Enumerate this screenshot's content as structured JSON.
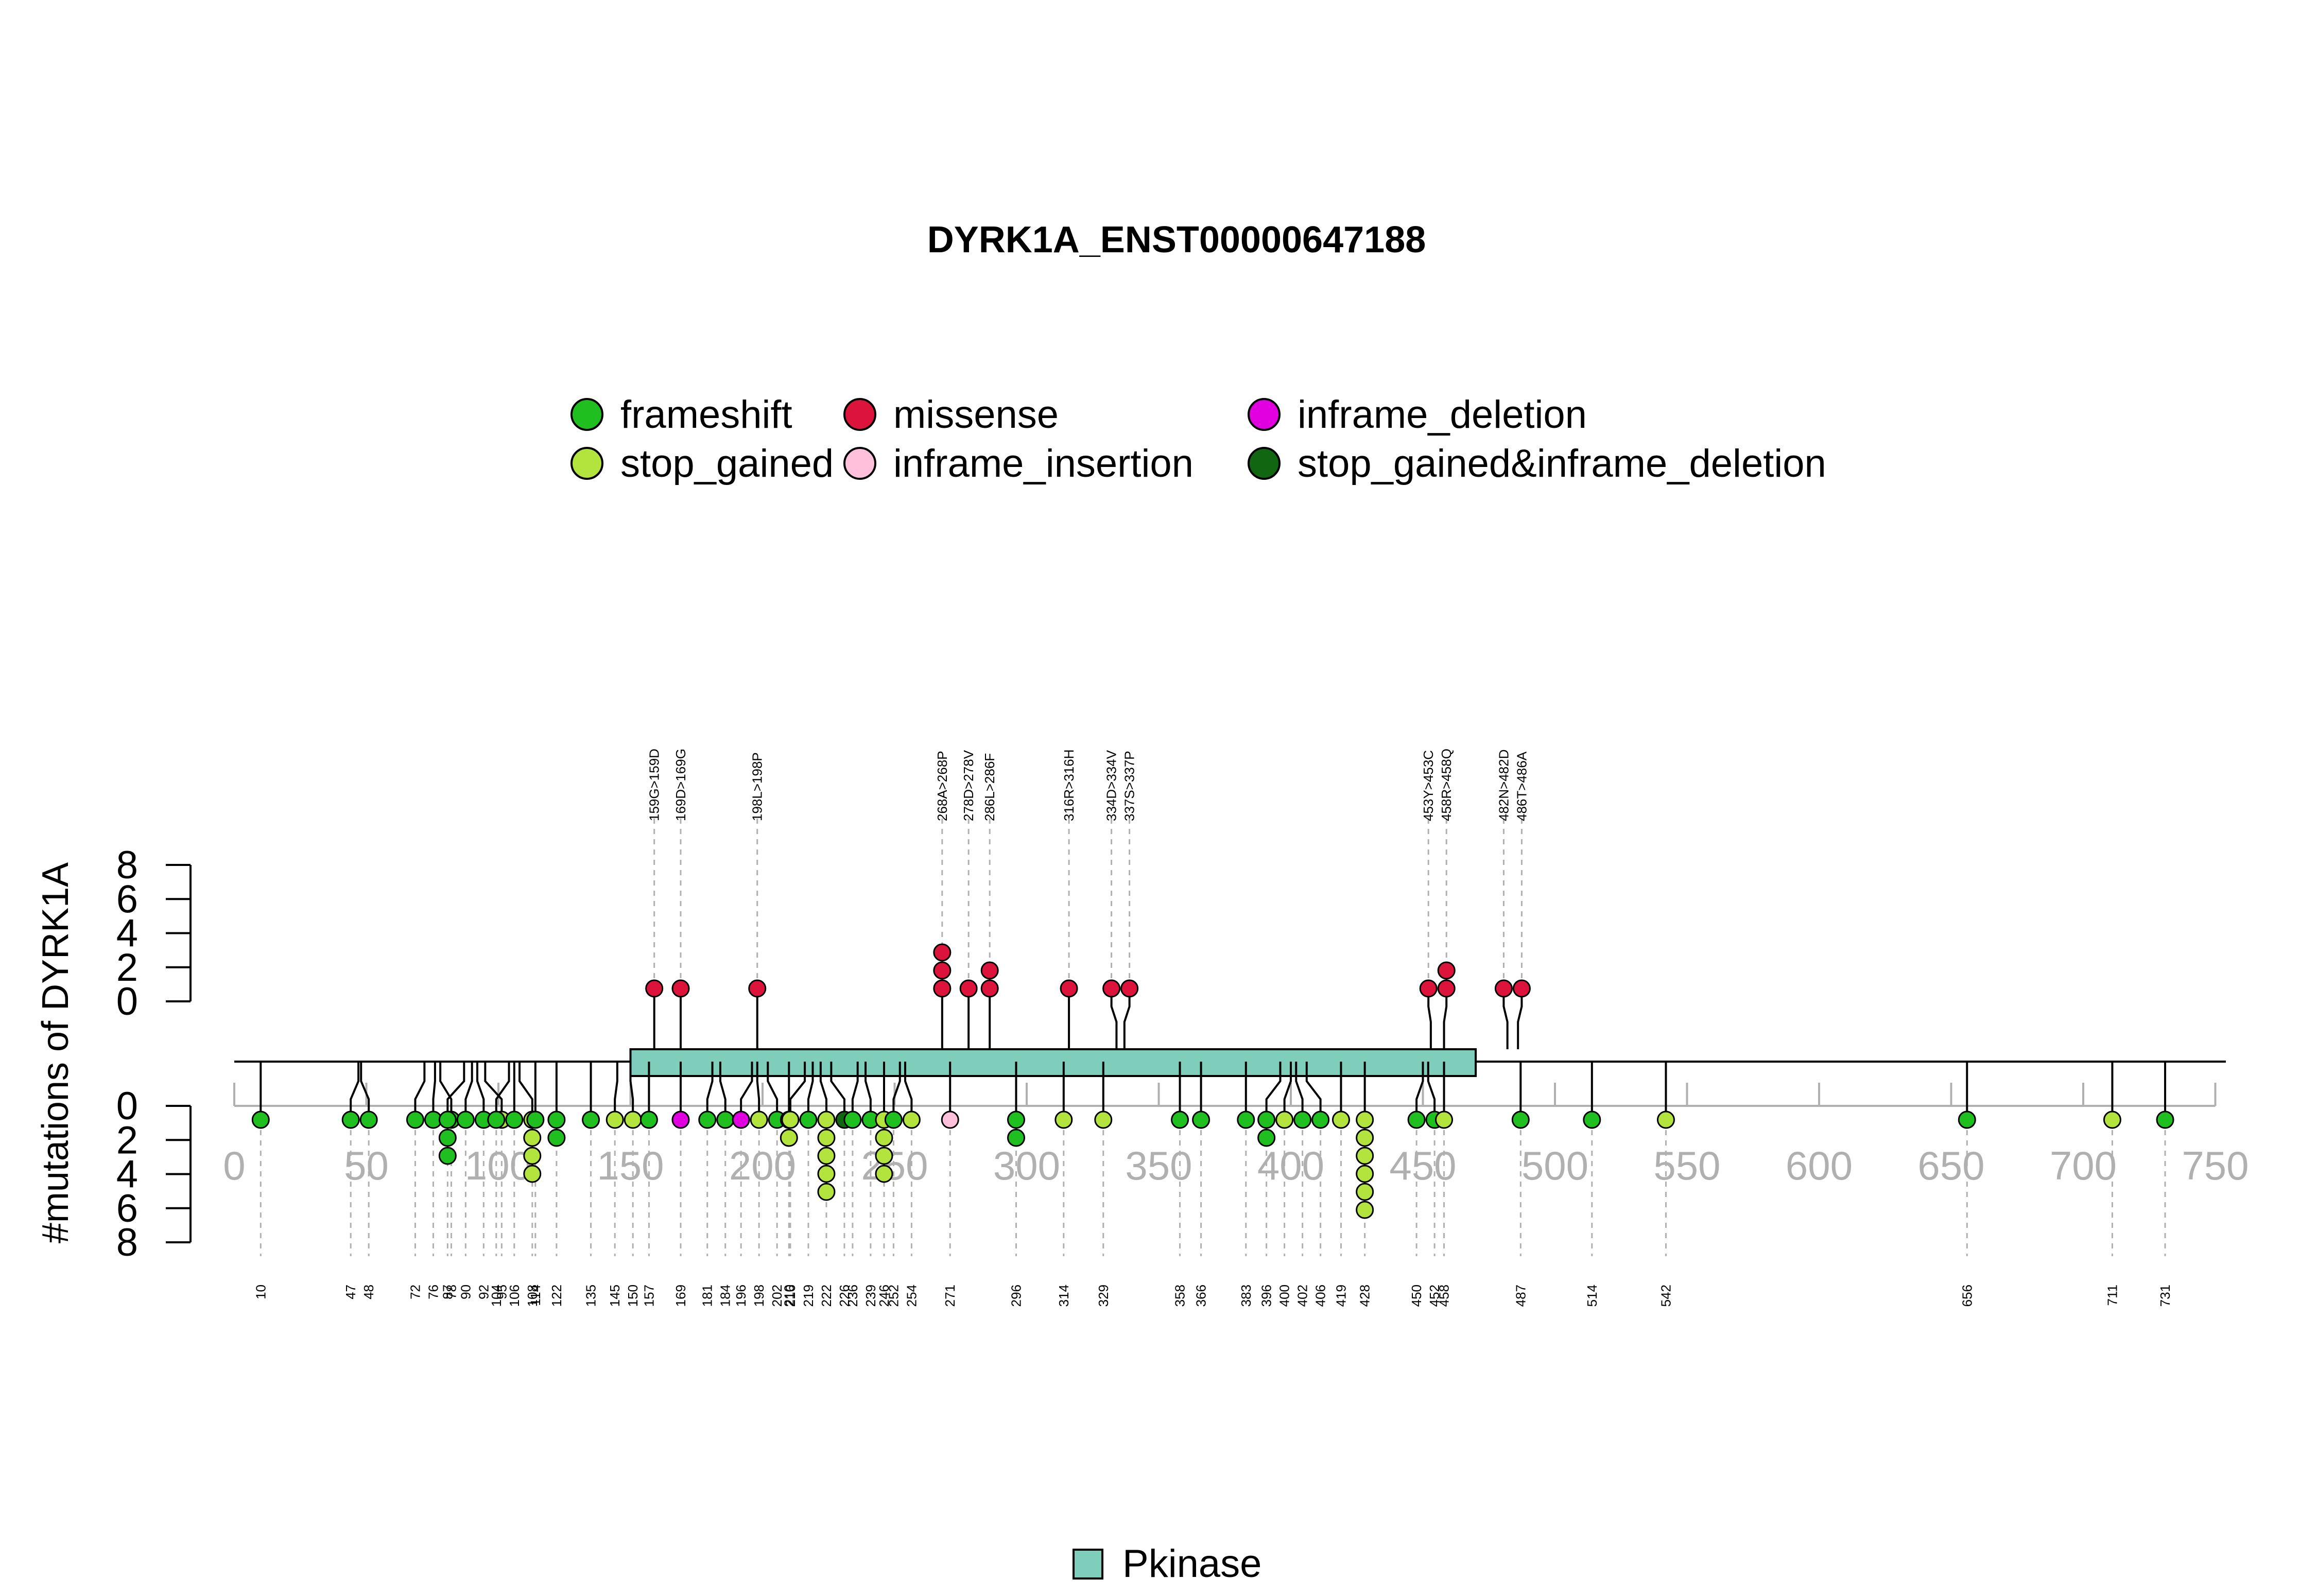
{
  "chart_data": {
    "type": "lollipop",
    "title": "DYRK1A_ENST00000647188",
    "ylabel": "#mutations of DYRK1A",
    "xlim": [
      0,
      750
    ],
    "x_ticks": [
      0,
      50,
      100,
      150,
      200,
      250,
      300,
      350,
      400,
      450,
      500,
      550,
      600,
      650,
      700,
      750
    ],
    "y_ticks": [
      0,
      2,
      4,
      6,
      8
    ],
    "ylim": [
      0,
      8
    ],
    "protein_length": 754,
    "legend": [
      {
        "name": "frameshift",
        "color": "#1fbf1f"
      },
      {
        "name": "missense",
        "color": "#dc143c"
      },
      {
        "name": "inframe_deletion",
        "color": "#e000e0"
      },
      {
        "name": "stop_gained",
        "color": "#b3e33d"
      },
      {
        "name": "inframe_insertion",
        "color": "#ffc0dc"
      },
      {
        "name": "stop_gained&inframe_deletion",
        "color": "#116611"
      }
    ],
    "domains": [
      {
        "name": "Pkinase",
        "start": 150,
        "end": 470,
        "color": "#7fcdbb"
      }
    ],
    "upper_mutations": [
      {
        "pos": 159,
        "label": "159G>159D",
        "count": 1,
        "type": "missense"
      },
      {
        "pos": 169,
        "label": "169D>169G",
        "count": 1,
        "type": "missense"
      },
      {
        "pos": 198,
        "label": "198L>198P",
        "count": 1,
        "type": "missense"
      },
      {
        "pos": 268,
        "label": "268A>268P",
        "count": 3,
        "type": "missense"
      },
      {
        "pos": 278,
        "label": "278D>278V",
        "count": 1,
        "type": "missense"
      },
      {
        "pos": 286,
        "label": "286L>286F",
        "count": 2,
        "type": "missense"
      },
      {
        "pos": 316,
        "label": "316R>316H",
        "count": 1,
        "type": "missense"
      },
      {
        "pos": 334,
        "label": "334D>334V",
        "count": 1,
        "type": "missense"
      },
      {
        "pos": 337,
        "label": "337S>337P",
        "count": 1,
        "type": "missense"
      },
      {
        "pos": 453,
        "label": "453Y>453C",
        "count": 1,
        "type": "missense"
      },
      {
        "pos": 458,
        "label": "458R>458Q",
        "count": 2,
        "type": "missense"
      },
      {
        "pos": 482,
        "label": "482N>482D",
        "count": 1,
        "type": "missense"
      },
      {
        "pos": 486,
        "label": "486T>486A",
        "count": 1,
        "type": "missense"
      }
    ],
    "lower_mutations": [
      {
        "pos": 10,
        "label": "10",
        "count": 1,
        "type": "frameshift"
      },
      {
        "pos": 47,
        "label": "47",
        "count": 1,
        "type": "frameshift"
      },
      {
        "pos": 48,
        "label": "48",
        "count": 1,
        "type": "frameshift"
      },
      {
        "pos": 72,
        "label": "72",
        "count": 1,
        "type": "frameshift"
      },
      {
        "pos": 76,
        "label": "76",
        "count": 1,
        "type": "frameshift"
      },
      {
        "pos": 78,
        "label": "78",
        "count": 1,
        "type": "frameshift"
      },
      {
        "pos": 87,
        "label": "87",
        "count": 3,
        "type": "frameshift"
      },
      {
        "pos": 90,
        "label": "90",
        "count": 1,
        "type": "frameshift"
      },
      {
        "pos": 92,
        "label": "92",
        "count": 1,
        "type": "frameshift"
      },
      {
        "pos": 95,
        "label": "95",
        "count": 1,
        "type": "stop_gained"
      },
      {
        "pos": 104,
        "label": "104",
        "count": 1,
        "type": "frameshift"
      },
      {
        "pos": 106,
        "label": "106",
        "count": 1,
        "type": "frameshift"
      },
      {
        "pos": 108,
        "label": "108",
        "count": 4,
        "type": "stop_gained"
      },
      {
        "pos": 114,
        "label": "114",
        "count": 1,
        "type": "frameshift"
      },
      {
        "pos": 122,
        "label": "122",
        "count": 2,
        "type": "frameshift"
      },
      {
        "pos": 135,
        "label": "135",
        "count": 1,
        "type": "frameshift"
      },
      {
        "pos": 145,
        "label": "145",
        "count": 1,
        "type": "stop_gained"
      },
      {
        "pos": 150,
        "label": "150",
        "count": 1,
        "type": "stop_gained"
      },
      {
        "pos": 157,
        "label": "157",
        "count": 1,
        "type": "frameshift"
      },
      {
        "pos": 169,
        "label": "169",
        "count": 1,
        "type": "inframe_deletion"
      },
      {
        "pos": 181,
        "label": "181",
        "count": 1,
        "type": "frameshift"
      },
      {
        "pos": 184,
        "label": "184",
        "count": 1,
        "type": "frameshift"
      },
      {
        "pos": 196,
        "label": "196",
        "count": 1,
        "type": "inframe_deletion"
      },
      {
        "pos": 198,
        "label": "198",
        "count": 1,
        "type": "stop_gained"
      },
      {
        "pos": 202,
        "label": "202",
        "count": 1,
        "type": "frameshift"
      },
      {
        "pos": 210,
        "label": "210",
        "count": 2,
        "type": "stop_gained"
      },
      {
        "pos": 216,
        "label": "216",
        "count": 1,
        "type": "stop_gained"
      },
      {
        "pos": 219,
        "label": "219",
        "count": 1,
        "type": "frameshift"
      },
      {
        "pos": 222,
        "label": "222",
        "count": 5,
        "type": "stop_gained"
      },
      {
        "pos": 226,
        "label": "226",
        "count": 1,
        "type": "stop_gained&inframe_deletion"
      },
      {
        "pos": 236,
        "label": "236",
        "count": 1,
        "type": "frameshift"
      },
      {
        "pos": 239,
        "label": "239",
        "count": 1,
        "type": "frameshift"
      },
      {
        "pos": 246,
        "label": "246",
        "count": 4,
        "type": "stop_gained"
      },
      {
        "pos": 252,
        "label": "252",
        "count": 1,
        "type": "frameshift"
      },
      {
        "pos": 254,
        "label": "254",
        "count": 1,
        "type": "stop_gained"
      },
      {
        "pos": 271,
        "label": "271",
        "count": 1,
        "type": "inframe_insertion"
      },
      {
        "pos": 296,
        "label": "296",
        "count": 2,
        "type": "frameshift"
      },
      {
        "pos": 314,
        "label": "314",
        "count": 1,
        "type": "stop_gained"
      },
      {
        "pos": 329,
        "label": "329",
        "count": 1,
        "type": "stop_gained"
      },
      {
        "pos": 358,
        "label": "358",
        "count": 1,
        "type": "frameshift"
      },
      {
        "pos": 366,
        "label": "366",
        "count": 1,
        "type": "frameshift"
      },
      {
        "pos": 383,
        "label": "383",
        "count": 1,
        "type": "frameshift"
      },
      {
        "pos": 396,
        "label": "396",
        "count": 2,
        "type": "frameshift"
      },
      {
        "pos": 400,
        "label": "400",
        "count": 1,
        "type": "stop_gained"
      },
      {
        "pos": 402,
        "label": "402",
        "count": 1,
        "type": "frameshift"
      },
      {
        "pos": 406,
        "label": "406",
        "count": 1,
        "type": "frameshift"
      },
      {
        "pos": 419,
        "label": "419",
        "count": 1,
        "type": "stop_gained"
      },
      {
        "pos": 428,
        "label": "428",
        "count": 6,
        "type": "stop_gained"
      },
      {
        "pos": 450,
        "label": "450",
        "count": 1,
        "type": "frameshift"
      },
      {
        "pos": 452,
        "label": "452",
        "count": 1,
        "type": "frameshift"
      },
      {
        "pos": 458,
        "label": "458",
        "count": 1,
        "type": "stop_gained"
      },
      {
        "pos": 487,
        "label": "487",
        "count": 1,
        "type": "frameshift"
      },
      {
        "pos": 514,
        "label": "514",
        "count": 1,
        "type": "frameshift"
      },
      {
        "pos": 542,
        "label": "542",
        "count": 1,
        "type": "stop_gained"
      },
      {
        "pos": 656,
        "label": "656",
        "count": 1,
        "type": "frameshift"
      },
      {
        "pos": 711,
        "label": "711",
        "count": 1,
        "type": "stop_gained"
      },
      {
        "pos": 731,
        "label": "731",
        "count": 1,
        "type": "frameshift"
      }
    ]
  }
}
